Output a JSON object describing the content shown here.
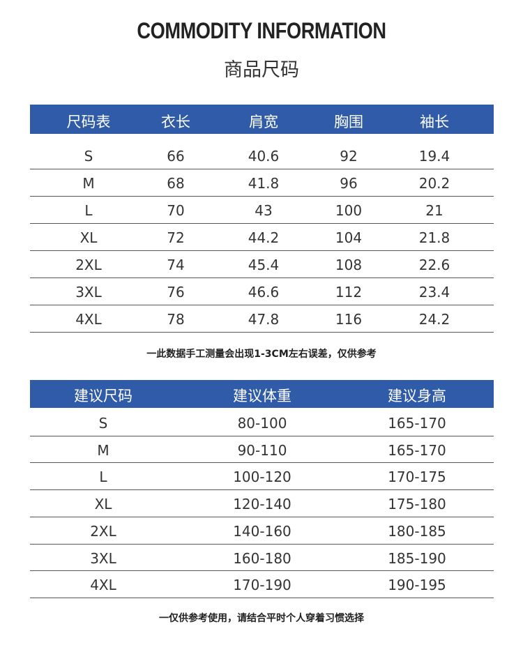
{
  "header": {
    "title": "COMMODITY INFORMATION",
    "subtitle": "商品尺码"
  },
  "table1": {
    "headers": [
      "尺码表",
      "衣长",
      "肩宽",
      "胸围",
      "袖长"
    ],
    "rows": [
      [
        "S",
        66,
        40.6,
        92,
        19.4
      ],
      [
        "M",
        68,
        41.8,
        96,
        20.2
      ],
      [
        "L",
        70,
        43,
        100,
        21
      ],
      [
        "XL",
        72,
        44.2,
        104,
        21.8
      ],
      [
        "2XL",
        74,
        45.4,
        108,
        22.6
      ],
      [
        "3XL",
        76,
        46.6,
        112,
        23.4
      ],
      [
        "4XL",
        78,
        47.8,
        116,
        24.2
      ]
    ],
    "note": "一此数据手工测量会出现1-3CM左右误差，仅供参考"
  },
  "table2": {
    "headers": [
      "建议尺码",
      "建议体重",
      "建议身高"
    ],
    "rows": [
      [
        "S",
        "80-100",
        "165-170"
      ],
      [
        "M",
        "90-110",
        "165-170"
      ],
      [
        "L",
        "100-120",
        "170-175"
      ],
      [
        "XL",
        "120-140",
        "175-180"
      ],
      [
        "2XL",
        "140-160",
        "180-185"
      ],
      [
        "3XL",
        "160-180",
        "185-190"
      ],
      [
        "4XL",
        "170-190",
        "190-195"
      ]
    ],
    "note": "一仅供参考使用，请结合平时个人穿着习惯选择"
  }
}
